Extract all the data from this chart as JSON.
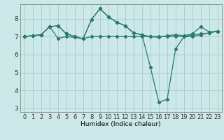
{
  "title": "",
  "xlabel": "Humidex (Indice chaleur)",
  "bg_color": "#cce8e8",
  "grid_color": "#aacfcf",
  "line_color": "#2a7a6a",
  "xlim": [
    -0.5,
    23.5
  ],
  "ylim": [
    2.8,
    8.8
  ],
  "yticks": [
    3,
    4,
    5,
    6,
    7,
    8
  ],
  "xticks": [
    0,
    1,
    2,
    3,
    4,
    5,
    6,
    7,
    8,
    9,
    10,
    11,
    12,
    13,
    14,
    15,
    16,
    17,
    18,
    19,
    20,
    21,
    22,
    23
  ],
  "series1": [
    7.0,
    7.05,
    7.1,
    7.55,
    7.6,
    7.15,
    7.0,
    6.88,
    7.95,
    8.55,
    8.1,
    7.8,
    7.6,
    7.2,
    7.1,
    7.0,
    6.95,
    7.05,
    7.1,
    7.05,
    7.15,
    7.55,
    7.25,
    7.3
  ],
  "series2": [
    7.0,
    7.05,
    7.1,
    7.55,
    6.9,
    7.0,
    6.95,
    6.88,
    7.0,
    7.0,
    7.0,
    7.0,
    7.0,
    7.0,
    7.0,
    7.0,
    7.0,
    7.0,
    7.0,
    7.0,
    7.0,
    7.1,
    7.2,
    7.3
  ],
  "series3": [
    7.0,
    7.05,
    7.1,
    7.55,
    7.6,
    7.15,
    7.0,
    6.88,
    7.95,
    8.55,
    8.1,
    7.8,
    7.6,
    7.2,
    7.1,
    5.3,
    3.35,
    3.5,
    6.3,
    7.0,
    7.1,
    7.15,
    7.2,
    7.3
  ],
  "tick_fontsize": 6.0,
  "xlabel_fontsize": 6.5,
  "marker_size": 2.2,
  "line_width": 0.9
}
